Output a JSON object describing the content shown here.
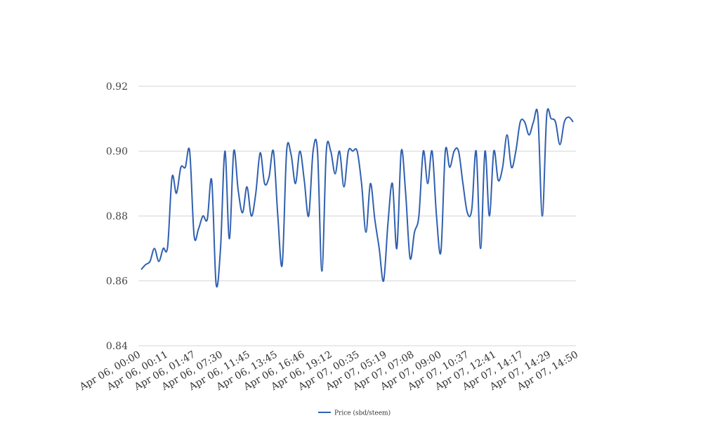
{
  "chart_data": {
    "type": "line",
    "title": "",
    "xlabel": "",
    "ylabel": "",
    "ylim": [
      0.84,
      0.92
    ],
    "yticks": [
      "0.84",
      "0.86",
      "0.88",
      "0.90",
      "0.92"
    ],
    "grid": true,
    "legend_position": "bottom-center",
    "x_tick_labels": [
      "Apr 06, 00:00",
      "Apr 06, 00:11",
      "Apr 06, 01:47",
      "Apr 06, 07:30",
      "Apr 06, 11:45",
      "Apr 06, 13:45",
      "Apr 06, 16:46",
      "Apr 06, 19:12",
      "Apr 07, 00:35",
      "Apr 07, 05:19",
      "Apr 07, 07:08",
      "Apr 07, 09:00",
      "Apr 07, 10:37",
      "Apr 07, 12:41",
      "Apr 07, 14:17",
      "Apr 07, 14:29",
      "Apr 07, 14:50"
    ],
    "series": [
      {
        "name": "Price (sbd/steem)",
        "color": "#3060b0",
        "values": [
          0.8635,
          0.865,
          0.866,
          0.87,
          0.866,
          0.87,
          0.8705,
          0.892,
          0.887,
          0.895,
          0.895,
          0.9,
          0.874,
          0.876,
          0.88,
          0.879,
          0.891,
          0.859,
          0.87,
          0.9,
          0.873,
          0.9,
          0.888,
          0.881,
          0.889,
          0.88,
          0.887,
          0.8995,
          0.89,
          0.892,
          0.9,
          0.88,
          0.865,
          0.9,
          0.899,
          0.89,
          0.9,
          0.891,
          0.88,
          0.9,
          0.9,
          0.863,
          0.9,
          0.9,
          0.893,
          0.9,
          0.889,
          0.9,
          0.9,
          0.9,
          0.89,
          0.875,
          0.89,
          0.879,
          0.87,
          0.86,
          0.878,
          0.89,
          0.87,
          0.9,
          0.887,
          0.867,
          0.875,
          0.88,
          0.9,
          0.89,
          0.9,
          0.88,
          0.869,
          0.9,
          0.895,
          0.9,
          0.9,
          0.89,
          0.881,
          0.882,
          0.9,
          0.87,
          0.9,
          0.88,
          0.9,
          0.891,
          0.895,
          0.905,
          0.895,
          0.9,
          0.909,
          0.909,
          0.905,
          0.909,
          0.911,
          0.88,
          0.911,
          0.91,
          0.909,
          0.902,
          0.909,
          0.9105,
          0.909
        ]
      }
    ]
  }
}
